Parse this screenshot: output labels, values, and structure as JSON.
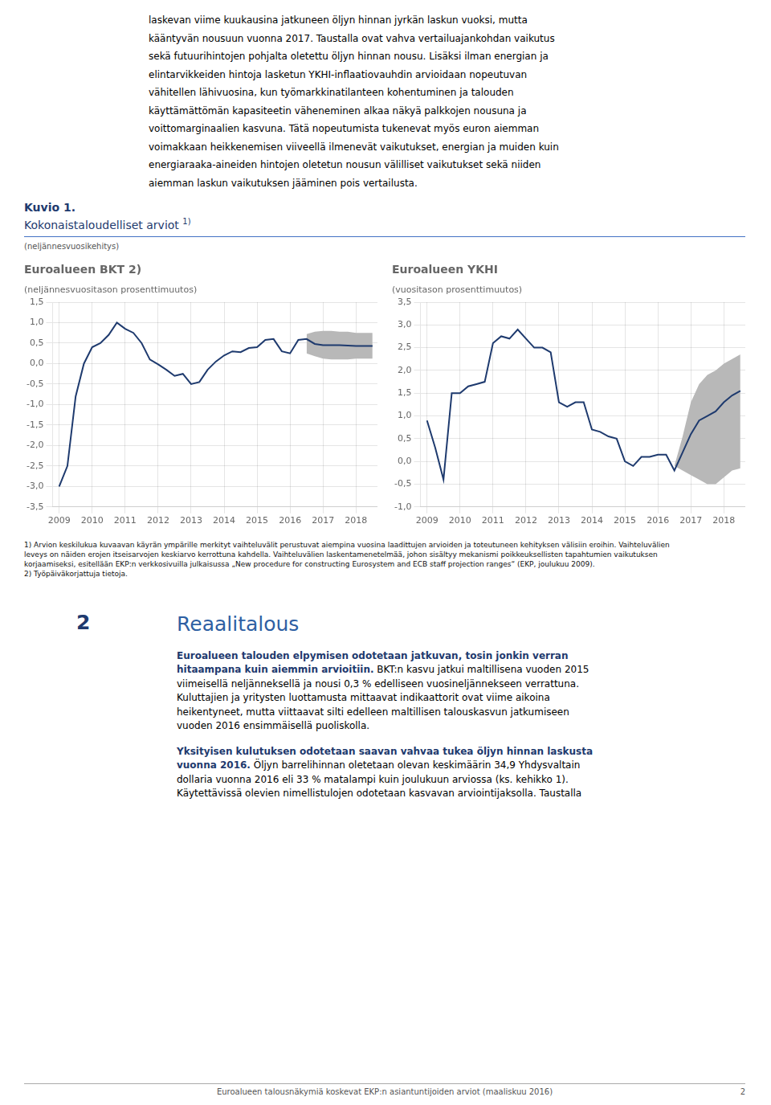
{
  "chart_data": [
    {
      "type": "line",
      "title": "Euroalueen BKT 2)",
      "subtitle": "(neljännesvuositason prosenttimuutos)",
      "series": [
        {
          "type": "line",
          "color": "#1e3a6e",
          "x": [
            2009.0,
            2009.25,
            2009.5,
            2009.75,
            2010.0,
            2010.25,
            2010.5,
            2010.75,
            2011.0,
            2011.25,
            2011.5,
            2011.75,
            2012.0,
            2012.25,
            2012.5,
            2012.75,
            2013.0,
            2013.25,
            2013.5,
            2013.75,
            2014.0,
            2014.25,
            2014.5,
            2014.75,
            2015.0,
            2015.25,
            2015.5,
            2015.75,
            2016.0,
            2016.25,
            2016.5,
            2016.75,
            2017.0,
            2017.25,
            2017.5,
            2017.75,
            2018.0,
            2018.25,
            2018.5
          ],
          "values": [
            -3.0,
            -2.5,
            -0.8,
            0.0,
            0.4,
            0.5,
            0.7,
            1.0,
            0.85,
            0.75,
            0.5,
            0.1,
            -0.02,
            -0.15,
            -0.3,
            -0.25,
            -0.5,
            -0.45,
            -0.15,
            0.05,
            0.2,
            0.3,
            0.28,
            0.38,
            0.4,
            0.58,
            0.6,
            0.3,
            0.25,
            0.58,
            0.6,
            0.48,
            0.45,
            0.45,
            0.45,
            0.44,
            0.43,
            0.43,
            0.43
          ]
        },
        {
          "type": "band",
          "color": "#b8b8b8",
          "x": [
            2016.5,
            2016.75,
            2017.0,
            2017.25,
            2017.5,
            2017.75,
            2018.0,
            2018.25,
            2018.5
          ],
          "lower": [
            0.25,
            0.18,
            0.12,
            0.1,
            0.1,
            0.1,
            0.12,
            0.12,
            0.12
          ],
          "upper": [
            0.72,
            0.78,
            0.8,
            0.8,
            0.78,
            0.78,
            0.75,
            0.75,
            0.75
          ]
        }
      ],
      "xlim": [
        2008.8,
        2018.65
      ],
      "xticks": [
        2009,
        2010,
        2011,
        2012,
        2013,
        2014,
        2015,
        2016,
        2017,
        2018
      ],
      "ylim": [
        -3.5,
        1.5
      ],
      "yticks": [
        {
          "value": -3.5,
          "label": "-3,5"
        },
        {
          "value": -3.0,
          "label": "-3,0"
        },
        {
          "value": -2.5,
          "label": "-2,5"
        },
        {
          "value": -2.0,
          "label": "-2,0"
        },
        {
          "value": -1.5,
          "label": "-1,5"
        },
        {
          "value": -1.0,
          "label": "-1,0"
        },
        {
          "value": -0.5,
          "label": "-0,5"
        },
        {
          "value": 0.0,
          "label": "0,0"
        },
        {
          "value": 0.5,
          "label": "0,5"
        },
        {
          "value": 1.0,
          "label": "1,0"
        },
        {
          "value": 1.5,
          "label": "1,5"
        }
      ],
      "grid": true
    },
    {
      "type": "line",
      "title": "Euroalueen YKHI",
      "subtitle": "(vuositason prosenttimuutos)",
      "series": [
        {
          "type": "line",
          "color": "#1e3a6e",
          "x": [
            2009.0,
            2009.25,
            2009.5,
            2009.75,
            2010.0,
            2010.25,
            2010.5,
            2010.75,
            2011.0,
            2011.25,
            2011.5,
            2011.75,
            2012.0,
            2012.25,
            2012.5,
            2012.75,
            2013.0,
            2013.25,
            2013.5,
            2013.75,
            2014.0,
            2014.25,
            2014.5,
            2014.75,
            2015.0,
            2015.25,
            2015.5,
            2015.75,
            2016.0,
            2016.25,
            2016.5,
            2016.75,
            2017.0,
            2017.25,
            2017.5,
            2017.75,
            2018.0,
            2018.25,
            2018.5
          ],
          "values": [
            0.9,
            0.3,
            -0.4,
            1.5,
            1.5,
            1.65,
            1.7,
            1.75,
            2.6,
            2.75,
            2.7,
            2.9,
            2.7,
            2.5,
            2.5,
            2.4,
            1.3,
            1.2,
            1.3,
            1.3,
            0.7,
            0.65,
            0.55,
            0.5,
            0.0,
            -0.1,
            0.1,
            0.1,
            0.15,
            0.15,
            -0.2,
            0.2,
            0.6,
            0.9,
            1.0,
            1.1,
            1.3,
            1.45,
            1.55
          ]
        },
        {
          "type": "band",
          "color": "#b8b8b8",
          "x": [
            2016.5,
            2016.75,
            2017.0,
            2017.25,
            2017.5,
            2017.75,
            2018.0,
            2018.25,
            2018.5
          ],
          "lower": [
            -0.1,
            -0.2,
            -0.3,
            -0.4,
            -0.5,
            -0.5,
            -0.35,
            -0.2,
            -0.15
          ],
          "upper": [
            -0.1,
            0.55,
            1.3,
            1.7,
            1.9,
            2.0,
            2.15,
            2.25,
            2.35
          ]
        }
      ],
      "xlim": [
        2008.8,
        2018.65
      ],
      "xticks": [
        2009,
        2010,
        2011,
        2012,
        2013,
        2014,
        2015,
        2016,
        2017,
        2018
      ],
      "ylim": [
        -1.0,
        3.5
      ],
      "yticks": [
        {
          "value": -1.0,
          "label": "-1,0"
        },
        {
          "value": -0.5,
          "label": "-0,5"
        },
        {
          "value": 0.0,
          "label": "0,0"
        },
        {
          "value": 0.5,
          "label": "0,5"
        },
        {
          "value": 1.0,
          "label": "1,0"
        },
        {
          "value": 1.5,
          "label": "1,5"
        },
        {
          "value": 2.0,
          "label": "2,0"
        },
        {
          "value": 2.5,
          "label": "2,5"
        },
        {
          "value": 3.0,
          "label": "3,0"
        },
        {
          "value": 3.5,
          "label": "3,5"
        }
      ],
      "grid": true
    }
  ],
  "page_text": {
    "text_above": [
      "laskevan viime kuukausina jatkuneen öljyn hinnan jyrkän laskun vuoksi, mutta",
      "kääntyvän nousuun vuonna 2017. Taustalla ovat vahva vertailuajankohdan vaikutus",
      "sekä futuurihintojen pohjalta oletettu öljyn hinnan nousu. Lisäksi ilman energian ja",
      "elintarvikkeiden hintoja lasketun YKHI-inflaatiovauhdin arvioidaan nopeutuvan",
      "vähitellen lähivuosina, kun työmarkkinatilanteen kohentuminen ja talouden",
      "käyttämättömän kapasiteetin väheneminen alkaa näkyä palkkojen nousuna ja",
      "voittomarginaalien kasvuna. Tätä nopeutumista tukenevat myös euron aiemman",
      "voimakkaan heikkenemisen viiveellä ilmenevät vaikutukset, energian ja muiden kuin",
      "energiaraaka-aineiden hintojen oletetun nousun välilliset vaikutukset sekä niiden",
      "aiemman laskun vaikutuksen jääminen pois vertailusta."
    ],
    "figure": {
      "label": "Kuvio 1.",
      "title": "Kokonaistaloudelliset arviot",
      "note_mark": "1)",
      "subtitle": "(neljännesvuosikehitys)"
    },
    "footnotes": [
      "1) Arvion keskilukua kuvaavan käyrän ympärille merkityt vaihteluvälit perustuvat aiempina vuosina laadittujen arvioiden ja toteutuneen kehityksen välisiin eroihin. Vaihteluvälien",
      "leveys on näiden erojen itseisarvojen keskiarvo kerrottuna kahdella. Vaihteluvälien laskentamenetelmää, johon sisältyy mekanismi poikkeuksellisten tapahtumien vaikutuksen",
      "korjaamiseksi, esitellään EKP:n verkkosivuilla julkaisussa „New procedure for constructing Eurosystem and ECB staff projection ranges“ (EKP, joulukuu 2009).",
      "2) Työpäiväkorjattuja tietoja."
    ],
    "section": {
      "number": "2",
      "title": "Reaalitalous"
    },
    "paragraphs": [
      [
        {
          "bold": "Euroalueen talouden elpymisen odotetaan jatkuvan, tosin jonkin verran"
        },
        {
          "bold": "hitaampana kuin aiemmin arvioitiin.",
          "text": " BKT:n kasvu jatkui maltillisena vuoden 2015"
        },
        {
          "text": "viimeisellä neljänneksellä ja nousi 0,3 % edelliseen vuosineljännekseen verrattuna."
        },
        {
          "text": "Kuluttajien ja yritysten luottamusta mittaavat indikaattorit ovat viime aikoina"
        },
        {
          "text": "heikentyneet, mutta viittaavat silti edelleen maltillisen talouskasvun jatkumiseen"
        },
        {
          "text": "vuoden 2016 ensimmäisellä puoliskolla."
        }
      ],
      [
        {
          "bold": "Yksityisen kulutuksen odotetaan saavan vahvaa tukea öljyn hinnan laskusta"
        },
        {
          "bold": "vuonna 2016.",
          "text": " Öljyn barrelihinnan oletetaan olevan keskimäärin 34,9 Yhdysvaltain"
        },
        {
          "text": "dollaria vuonna 2016 eli 33 % matalampi kuin joulukuun arviossa (ks. kehikko 1)."
        },
        {
          "text": "Käytettävissä olevien nimellistulojen odotetaan kasvavan arviointijaksolla. Taustalla"
        }
      ]
    ],
    "footer": {
      "text": "Euroalueen talousnäkymiä koskevat EKP:n asiantuntijoiden arviot (maaliskuu 2016)",
      "page": "2"
    }
  }
}
